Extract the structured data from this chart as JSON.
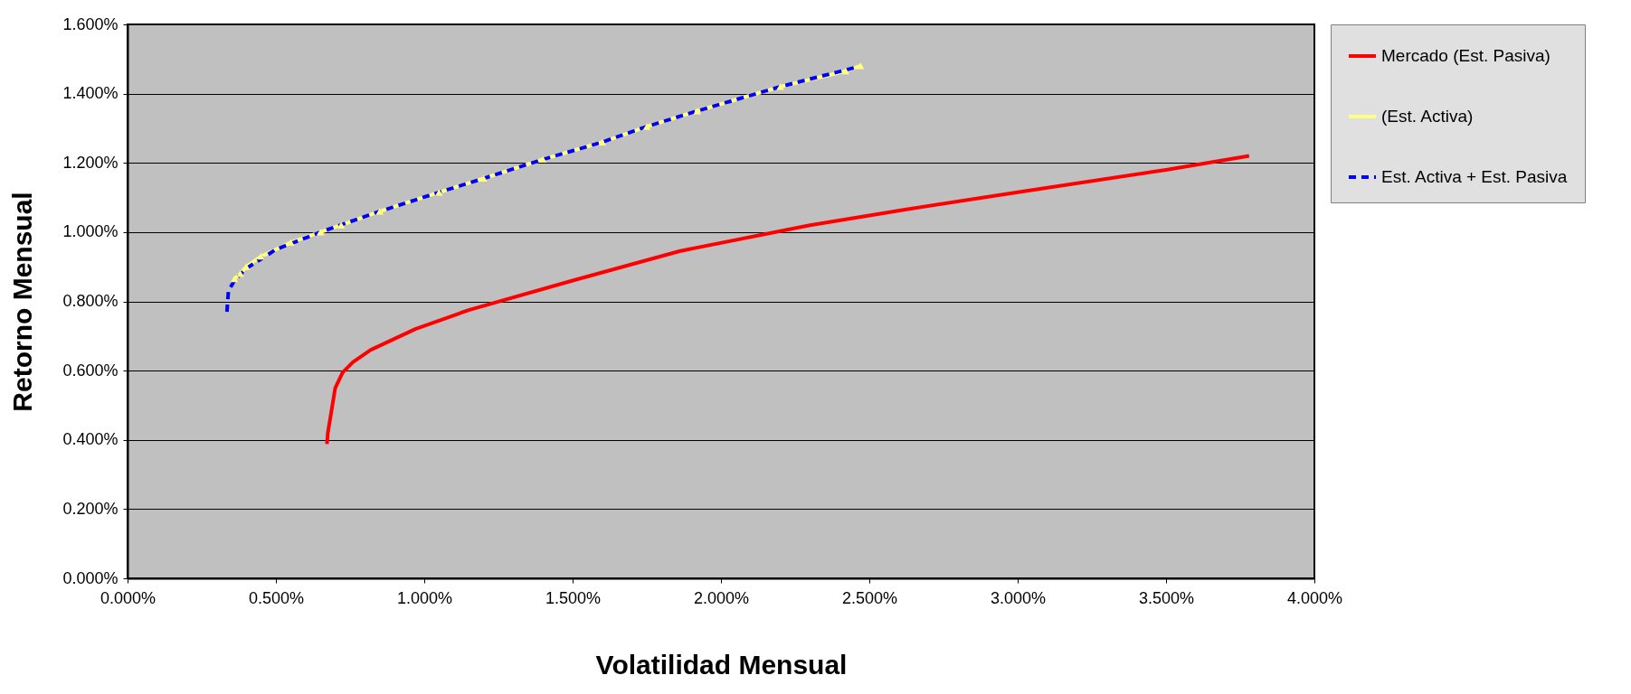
{
  "chart_data": {
    "type": "line",
    "xlabel": "Volatilidad Mensual",
    "ylabel": "Retorno Mensual",
    "xlim": [
      0,
      4
    ],
    "ylim": [
      0,
      1.6
    ],
    "xticks": [
      {
        "value": 0,
        "label": "0.000%"
      },
      {
        "value": 0.5,
        "label": "0.500%"
      },
      {
        "value": 1,
        "label": "1.000%"
      },
      {
        "value": 1.5,
        "label": "1.500%"
      },
      {
        "value": 2,
        "label": "2.000%"
      },
      {
        "value": 2.5,
        "label": "2.500%"
      },
      {
        "value": 3,
        "label": "3.000%"
      },
      {
        "value": 3.5,
        "label": "3.500%"
      },
      {
        "value": 4,
        "label": "4.000%"
      }
    ],
    "yticks": [
      {
        "value": 0,
        "label": "0.000%"
      },
      {
        "value": 0.2,
        "label": "0.200%"
      },
      {
        "value": 0.4,
        "label": "0.400%"
      },
      {
        "value": 0.6,
        "label": "0.600%"
      },
      {
        "value": 0.8,
        "label": "0.800%"
      },
      {
        "value": 1,
        "label": "1.000%"
      },
      {
        "value": 1.2,
        "label": "1.200%"
      },
      {
        "value": 1.4,
        "label": "1.400%"
      },
      {
        "value": 1.6,
        "label": "1.600%"
      }
    ],
    "grid": "y",
    "legend": "right",
    "series": [
      {
        "name": "Mercado (Est. Pasiva)",
        "color": "#ff0000",
        "line_style": "solid",
        "marker": "none",
        "x": [
          0.672,
          0.675,
          0.7,
          0.725,
          0.76,
          0.82,
          0.97,
          1.15,
          1.5,
          1.86,
          2.3,
          2.62,
          3.0,
          3.5,
          3.78
        ],
        "values": [
          0.388,
          0.42,
          0.55,
          0.595,
          0.625,
          0.66,
          0.72,
          0.775,
          0.86,
          0.945,
          1.02,
          1.065,
          1.115,
          1.18,
          1.22
        ]
      },
      {
        "name": "(Est. Activa)",
        "color": "#ffff80",
        "line_style": "solid",
        "marker": "triangle",
        "x": [
          0.36,
          0.38,
          0.4,
          0.45,
          0.55,
          0.65,
          0.72,
          0.85,
          1.05,
          1.2,
          1.4,
          1.6,
          1.75,
          1.92,
          2.2,
          2.42,
          2.47
        ],
        "values": [
          0.865,
          0.88,
          0.9,
          0.93,
          0.97,
          1.0,
          1.02,
          1.06,
          1.115,
          1.155,
          1.21,
          1.26,
          1.305,
          1.35,
          1.42,
          1.465,
          1.48
        ]
      },
      {
        "name": "Est. Activa + Est. Pasiva",
        "color": "#0000ff",
        "line_style": "dashed",
        "marker": "none",
        "x": [
          0.335,
          0.34,
          0.36,
          0.4,
          0.5,
          0.65,
          0.85,
          1.05,
          1.2,
          1.4,
          1.6,
          1.75,
          1.92,
          2.2,
          2.45
        ],
        "values": [
          0.77,
          0.83,
          0.86,
          0.895,
          0.95,
          1.0,
          1.06,
          1.115,
          1.155,
          1.21,
          1.26,
          1.305,
          1.35,
          1.42,
          1.475
        ]
      }
    ]
  }
}
